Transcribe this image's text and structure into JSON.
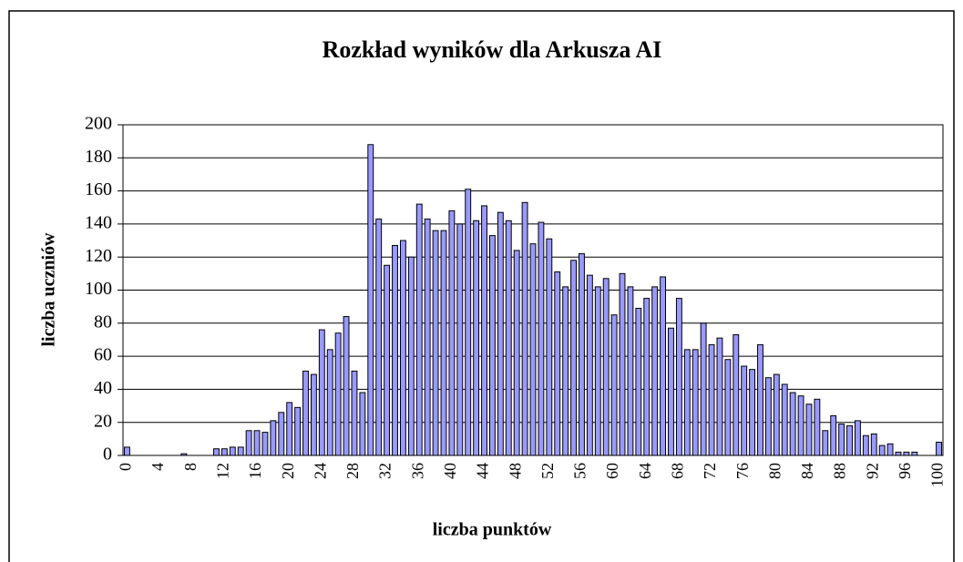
{
  "chart_data": {
    "type": "bar",
    "title": "Rozkład wyników dla Arkusza AI",
    "x_label": "liczba punktów",
    "y_label": "liczba uczniów",
    "categories": [
      "0",
      null,
      null,
      null,
      "4",
      null,
      null,
      null,
      "8",
      null,
      null,
      null,
      "12",
      null,
      null,
      null,
      "16",
      null,
      null,
      null,
      "20",
      null,
      null,
      null,
      "24",
      null,
      null,
      null,
      "28",
      null,
      null,
      null,
      "32",
      null,
      null,
      null,
      "36",
      null,
      null,
      null,
      "40",
      null,
      null,
      null,
      "44",
      null,
      null,
      null,
      "48",
      null,
      null,
      null,
      "52",
      null,
      null,
      null,
      "56",
      null,
      null,
      null,
      "60",
      null,
      null,
      null,
      "64",
      null,
      null,
      null,
      "68",
      null,
      null,
      null,
      "72",
      null,
      null,
      null,
      "76",
      null,
      null,
      null,
      "80",
      null,
      null,
      null,
      "84",
      null,
      null,
      null,
      "88",
      null,
      null,
      null,
      "92",
      null,
      null,
      null,
      "96",
      null,
      null,
      null,
      "100"
    ],
    "values": [
      5,
      0,
      0,
      0,
      0,
      0,
      0,
      1,
      0,
      0,
      0,
      4,
      4,
      5,
      5,
      15,
      15,
      14,
      21,
      26,
      32,
      29,
      51,
      49,
      76,
      64,
      74,
      84,
      51,
      38,
      188,
      143,
      115,
      127,
      130,
      120,
      152,
      143,
      136,
      136,
      148,
      140,
      161,
      142,
      151,
      133,
      147,
      142,
      124,
      153,
      128,
      141,
      131,
      111,
      102,
      118,
      122,
      109,
      102,
      107,
      85,
      110,
      102,
      89,
      95,
      102,
      108,
      77,
      95,
      64,
      64,
      80,
      67,
      71,
      58,
      73,
      54,
      52,
      67,
      47,
      49,
      43,
      38,
      36,
      31,
      34,
      15,
      24,
      19,
      18,
      21,
      12,
      13,
      6,
      7,
      2,
      2,
      2,
      0,
      0,
      8
    ],
    "color": "#9999ff",
    "ylim": [
      0,
      200
    ],
    "yticks": [
      0,
      20,
      40,
      60,
      80,
      100,
      120,
      140,
      160,
      180,
      200
    ],
    "grid": true
  }
}
